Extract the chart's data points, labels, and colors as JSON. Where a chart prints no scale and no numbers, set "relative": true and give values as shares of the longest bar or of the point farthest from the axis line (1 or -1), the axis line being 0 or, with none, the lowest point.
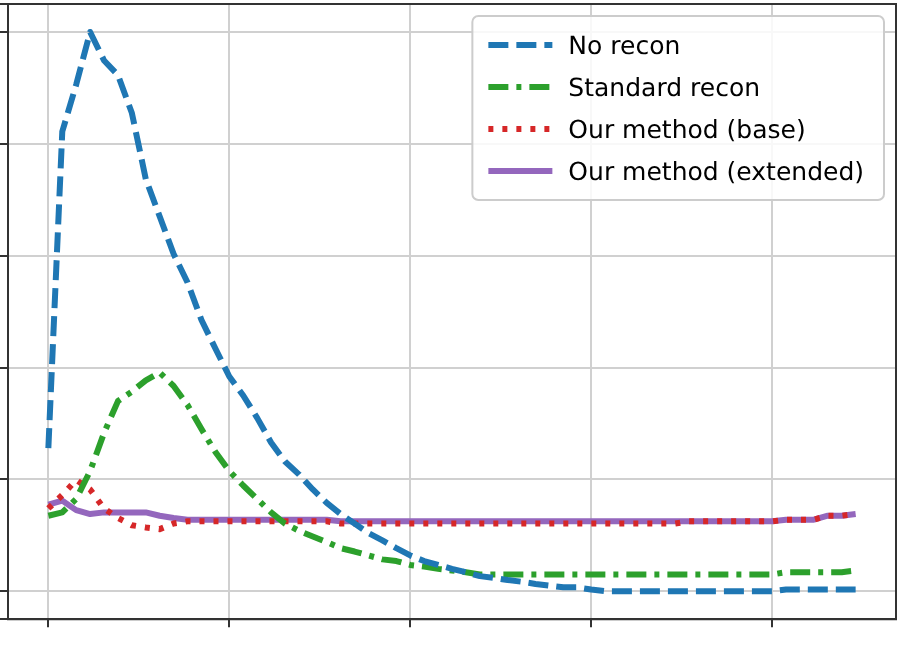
{
  "chart_data": {
    "type": "line",
    "relative": true,
    "grid": true,
    "legend": "top right",
    "categories": [
      null,
      null,
      null,
      null,
      null,
      null,
      null,
      null,
      null,
      null,
      null,
      null,
      null,
      null,
      null,
      null,
      null,
      null,
      null,
      null,
      null,
      null,
      null,
      null,
      null,
      null,
      null,
      null,
      null,
      null,
      null,
      null,
      null,
      null,
      null,
      null,
      null,
      null,
      null,
      null,
      null,
      null,
      null,
      null,
      null,
      null,
      null,
      null,
      null,
      null,
      null,
      null,
      null,
      null,
      null,
      null,
      null,
      null,
      null
    ],
    "series": [
      {
        "name": "No recon",
        "color": "#1f77b4",
        "line_style": "dashed",
        "values": [
          0.256,
          0.822,
          0.906,
          1,
          0.949,
          0.923,
          0.855,
          0.737,
          0.67,
          0.603,
          0.552,
          0.485,
          0.434,
          0.384,
          0.35,
          0.31,
          0.266,
          0.232,
          0.209,
          0.182,
          0.158,
          0.138,
          0.121,
          0.104,
          0.091,
          0.077,
          0.064,
          0.054,
          0.047,
          0.04,
          0.034,
          0.027,
          0.024,
          0.02,
          0.017,
          0.013,
          0.01,
          0.007,
          0.007,
          0.003,
          0,
          0,
          0,
          0,
          0,
          0,
          0,
          0,
          0,
          0,
          0,
          0,
          0,
          0.003,
          0.003,
          0.003,
          0.003,
          0.003,
          0.003
        ]
      },
      {
        "name": "Standard recon",
        "color": "#2ca02c",
        "line_style": "dashdot",
        "values": [
          0.135,
          0.141,
          0.165,
          0.215,
          0.283,
          0.34,
          0.357,
          0.377,
          0.391,
          0.367,
          0.333,
          0.29,
          0.249,
          0.215,
          0.189,
          0.165,
          0.141,
          0.121,
          0.108,
          0.098,
          0.088,
          0.077,
          0.071,
          0.064,
          0.057,
          0.054,
          0.047,
          0.044,
          0.04,
          0.037,
          0.034,
          0.03,
          0.03,
          0.03,
          0.03,
          0.03,
          0.03,
          0.03,
          0.03,
          0.03,
          0.03,
          0.03,
          0.03,
          0.03,
          0.03,
          0.03,
          0.03,
          0.03,
          0.03,
          0.03,
          0.03,
          0.03,
          0.03,
          0.034,
          0.034,
          0.034,
          0.034,
          0.034,
          0.037
        ]
      },
      {
        "name": "Our method (base)",
        "color": "#d62728",
        "line_style": "dotted",
        "values": [
          0.148,
          0.172,
          0.199,
          0.182,
          0.148,
          0.131,
          0.118,
          0.114,
          0.111,
          0.121,
          0.125,
          0.125,
          0.125,
          0.125,
          0.125,
          0.125,
          0.125,
          0.125,
          0.125,
          0.125,
          0.125,
          0.121,
          0.121,
          0.121,
          0.121,
          0.121,
          0.121,
          0.121,
          0.121,
          0.121,
          0.121,
          0.121,
          0.121,
          0.121,
          0.121,
          0.121,
          0.121,
          0.121,
          0.121,
          0.121,
          0.121,
          0.121,
          0.121,
          0.121,
          0.121,
          0.121,
          0.125,
          0.125,
          0.125,
          0.125,
          0.125,
          0.125,
          0.125,
          0.128,
          0.128,
          0.128,
          0.135,
          0.135,
          0.138
        ]
      },
      {
        "name": "Our method (extended)",
        "color": "#9467bd",
        "line_style": "solid",
        "values": [
          0.155,
          0.162,
          0.145,
          0.138,
          0.141,
          0.141,
          0.141,
          0.141,
          0.135,
          0.131,
          0.128,
          0.128,
          0.128,
          0.128,
          0.128,
          0.128,
          0.128,
          0.128,
          0.128,
          0.128,
          0.128,
          0.125,
          0.125,
          0.125,
          0.125,
          0.125,
          0.125,
          0.125,
          0.125,
          0.125,
          0.125,
          0.125,
          0.125,
          0.125,
          0.125,
          0.125,
          0.125,
          0.125,
          0.125,
          0.125,
          0.125,
          0.125,
          0.125,
          0.125,
          0.125,
          0.125,
          0.125,
          0.125,
          0.125,
          0.125,
          0.125,
          0.125,
          0.125,
          0.128,
          0.128,
          0.128,
          0.135,
          0.135,
          0.138
        ]
      }
    ]
  }
}
